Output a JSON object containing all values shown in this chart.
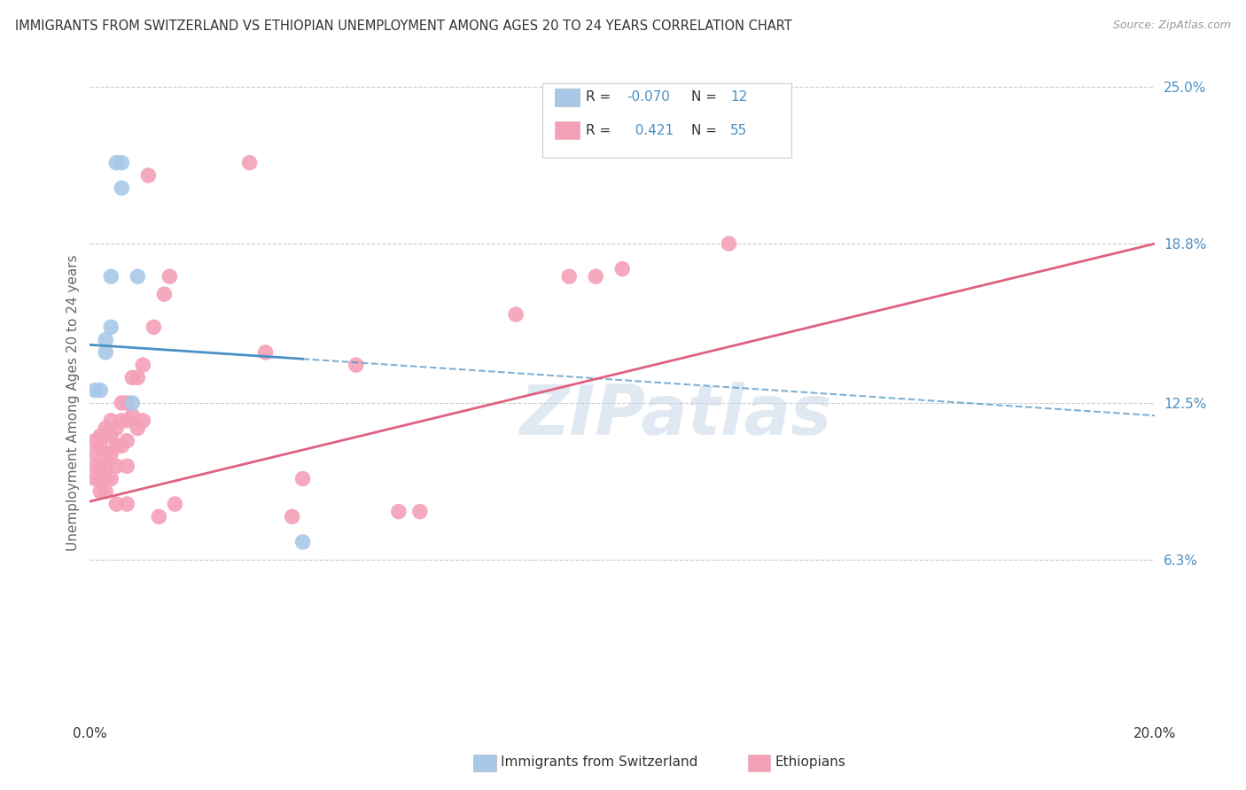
{
  "title": "IMMIGRANTS FROM SWITZERLAND VS ETHIOPIAN UNEMPLOYMENT AMONG AGES 20 TO 24 YEARS CORRELATION CHART",
  "source": "Source: ZipAtlas.com",
  "ylabel": "Unemployment Among Ages 20 to 24 years",
  "xlim": [
    0.0,
    0.2
  ],
  "ylim": [
    0.0,
    0.25
  ],
  "x_ticks": [
    0.0,
    0.04,
    0.08,
    0.12,
    0.16,
    0.2
  ],
  "x_tick_labels": [
    "0.0%",
    "",
    "",
    "",
    "",
    "20.0%"
  ],
  "y_ticks_right": [
    0.0,
    0.063,
    0.125,
    0.188,
    0.25
  ],
  "y_tick_labels_right": [
    "",
    "6.3%",
    "12.5%",
    "18.8%",
    "25.0%"
  ],
  "legend_label1": "Immigrants from Switzerland",
  "legend_label2": "Ethiopians",
  "watermark": "ZIPatlas",
  "blue_color": "#a8c8e8",
  "blue_line_color": "#4a90c4",
  "pink_color": "#f4a0b8",
  "pink_line_color": "#e06080",
  "title_color": "#333333",
  "right_tick_color": "#4a90c4",
  "swiss_points_x": [
    0.001,
    0.002,
    0.003,
    0.003,
    0.004,
    0.004,
    0.005,
    0.006,
    0.006,
    0.008,
    0.009,
    0.04
  ],
  "swiss_points_y": [
    0.13,
    0.13,
    0.145,
    0.15,
    0.175,
    0.155,
    0.22,
    0.22,
    0.21,
    0.125,
    0.175,
    0.07
  ],
  "eth_points_x": [
    0.001,
    0.001,
    0.001,
    0.001,
    0.002,
    0.002,
    0.002,
    0.002,
    0.002,
    0.003,
    0.003,
    0.003,
    0.003,
    0.003,
    0.003,
    0.004,
    0.004,
    0.004,
    0.004,
    0.005,
    0.005,
    0.005,
    0.005,
    0.006,
    0.006,
    0.006,
    0.007,
    0.007,
    0.007,
    0.007,
    0.007,
    0.008,
    0.008,
    0.009,
    0.009,
    0.01,
    0.01,
    0.011,
    0.012,
    0.013,
    0.014,
    0.015,
    0.016,
    0.03,
    0.033,
    0.038,
    0.04,
    0.05,
    0.058,
    0.062,
    0.08,
    0.09,
    0.095,
    0.1,
    0.12
  ],
  "eth_points_y": [
    0.11,
    0.105,
    0.1,
    0.095,
    0.112,
    0.108,
    0.1,
    0.095,
    0.09,
    0.115,
    0.112,
    0.105,
    0.1,
    0.095,
    0.09,
    0.118,
    0.112,
    0.105,
    0.095,
    0.115,
    0.108,
    0.1,
    0.085,
    0.125,
    0.118,
    0.108,
    0.125,
    0.118,
    0.11,
    0.1,
    0.085,
    0.135,
    0.12,
    0.135,
    0.115,
    0.14,
    0.118,
    0.215,
    0.155,
    0.08,
    0.168,
    0.175,
    0.085,
    0.22,
    0.145,
    0.08,
    0.095,
    0.14,
    0.082,
    0.082,
    0.16,
    0.175,
    0.175,
    0.178,
    0.188
  ],
  "blue_trend_y_start": 0.148,
  "blue_trend_y_end": 0.12,
  "pink_trend_y_start": 0.086,
  "pink_trend_y_end": 0.188
}
